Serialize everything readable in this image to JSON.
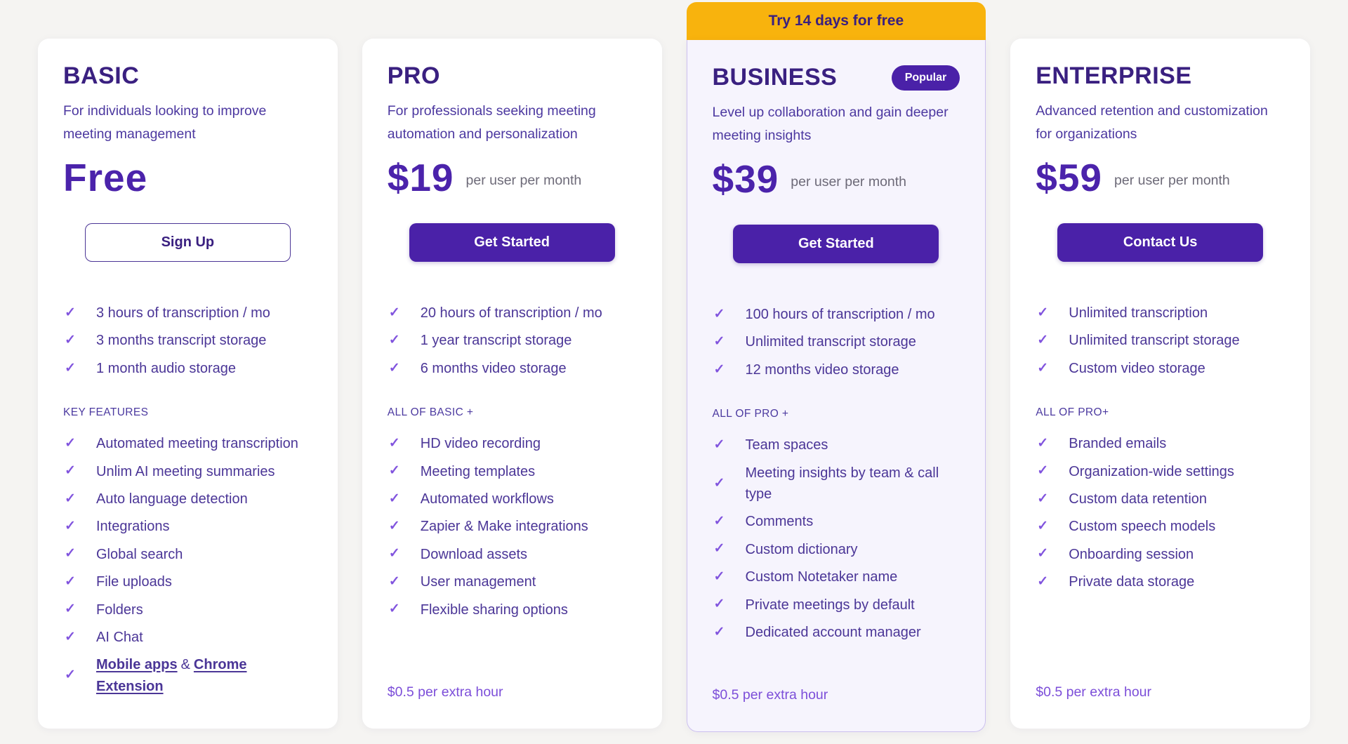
{
  "icons": {
    "check": "✓"
  },
  "colors": {
    "page_bg": "#F5F4F2",
    "card_bg": "#FFFFFF",
    "accent": "#4A21A8",
    "heading": "#3A2080",
    "body_text": "#4B3697",
    "check": "#8154DE",
    "price": "#4B23AB",
    "muted_suffix": "#6D6A78",
    "footnote": "#7C4ED9",
    "banner_bg": "#F8B30D",
    "business_card_bg": "#F6F4FD",
    "business_card_border": "#CCC0EF"
  },
  "trial_banner": {
    "label": "Try 14 days for free"
  },
  "plans": {
    "basic": {
      "name": "BASIC",
      "description": "For individuals looking to improve meeting management",
      "price": "Free",
      "cta": "Sign Up",
      "top_features": [
        "3 hours of transcription / mo",
        "3 months transcript storage",
        "1 month audio storage"
      ],
      "section_label": "KEY FEATURES",
      "features": [
        "Automated meeting transcription",
        "Unlim AI meeting summaries",
        "Auto language detection",
        "Integrations",
        "Global search",
        "File uploads",
        "Folders",
        "AI Chat"
      ],
      "combo_feature": {
        "link1": "Mobile apps",
        "separator": "&",
        "link2": "Chrome Extension"
      }
    },
    "pro": {
      "name": "PRO",
      "description": "For professionals seeking meeting automation and personalization",
      "price": "$19",
      "price_suffix": "per user per month",
      "cta": "Get Started",
      "top_features": [
        "20 hours of transcription / mo",
        "1 year transcript storage",
        "6 months video storage"
      ],
      "section_label": "ALL OF BASIC +",
      "features": [
        "HD video recording",
        "Meeting templates",
        "Automated workflows",
        "Zapier & Make integrations",
        "Download assets",
        "User management",
        "Flexible sharing options"
      ],
      "footnote": "$0.5 per extra hour"
    },
    "business": {
      "name": "BUSINESS",
      "badge": "Popular",
      "description": "Level up collaboration and gain deeper meeting insights",
      "price": "$39",
      "price_suffix": "per user per month",
      "cta": "Get Started",
      "top_features": [
        "100 hours of transcription / mo",
        "Unlimited transcript storage",
        "12 months video storage"
      ],
      "section_label": "ALL OF PRO +",
      "features": [
        "Team spaces",
        "Meeting insights by team & call type",
        "Comments",
        "Custom dictionary",
        "Custom Notetaker name",
        "Private meetings by default",
        "Dedicated account manager"
      ],
      "footnote": "$0.5 per extra hour"
    },
    "enterprise": {
      "name": "ENTERPRISE",
      "description": "Advanced retention and customization for organizations",
      "price": "$59",
      "price_suffix": "per user per month",
      "cta": "Contact Us",
      "top_features": [
        "Unlimited transcription",
        "Unlimited transcript storage",
        "Custom video storage"
      ],
      "section_label": "ALL OF PRO+",
      "features": [
        "Branded emails",
        "Organization-wide settings",
        "Custom data retention",
        "Custom speech models",
        "Onboarding session",
        "Private data storage"
      ],
      "footnote": "$0.5 per extra hour"
    }
  }
}
